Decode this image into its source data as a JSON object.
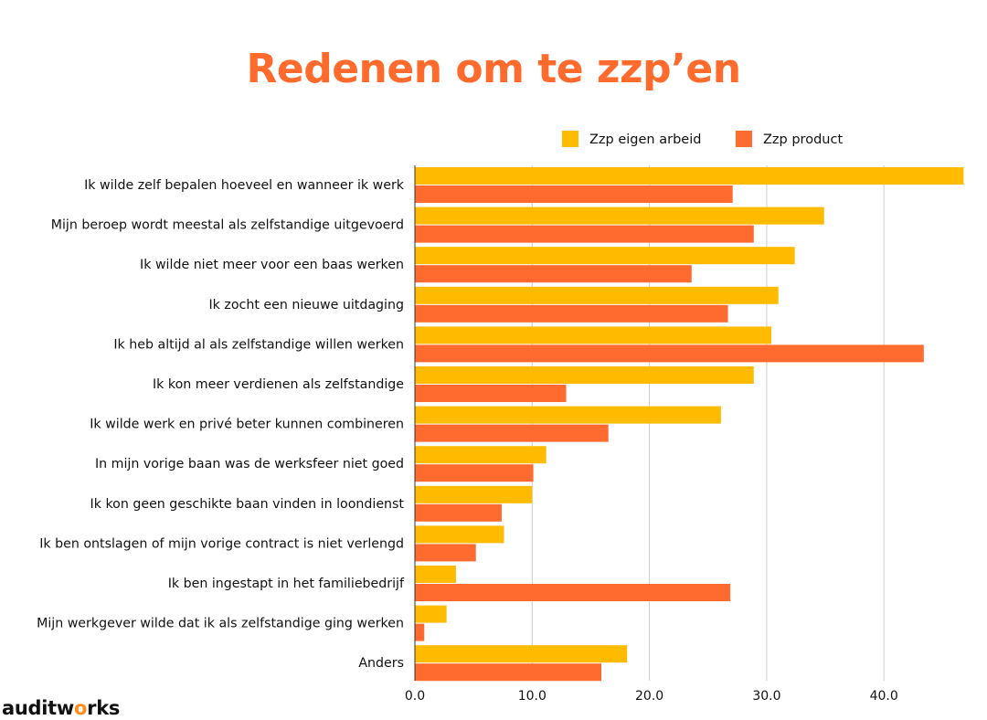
{
  "chart_data": {
    "type": "bar",
    "orientation": "horizontal",
    "title": "Redenen om te zzp’en",
    "xlabel": "",
    "ylabel": "",
    "xlim": [
      0,
      46.8
    ],
    "x_ticks": [
      "0.0",
      "10.0",
      "20.0",
      "30.0",
      "40.0"
    ],
    "x_tick_values": [
      0,
      10,
      20,
      30,
      40
    ],
    "grid": true,
    "legend_position": "top-right",
    "categories": [
      "Ik wilde zelf bepalen hoeveel en wanneer ik werk",
      "Mijn beroep wordt meestal als zelfstandige uitgevoerd",
      "Ik wilde niet meer voor een baas werken",
      "Ik zocht een nieuwe uitdaging",
      "Ik heb altijd al als zelfstandige willen werken",
      "Ik kon meer verdienen als zelfstandige",
      "Ik wilde werk en privé beter kunnen combineren",
      "In mijn vorige baan was de werksfeer niet goed",
      "Ik kon geen geschikte baan vinden in loondienst",
      "Ik ben ontslagen of mijn vorige contract is niet verlengd",
      "Ik ben ingestapt in het familiebedrijf",
      "Mijn werkgever wilde dat ik als zelfstandige ging werken",
      "Anders"
    ],
    "series": [
      {
        "name": "Zzp eigen arbeid",
        "color": "#ffbb00",
        "values": [
          46.8,
          34.9,
          32.4,
          31.0,
          30.4,
          28.9,
          26.1,
          11.2,
          10.0,
          7.6,
          3.5,
          2.7,
          18.1
        ]
      },
      {
        "name": "Zzp product",
        "color": "#ff6a2f",
        "values": [
          27.1,
          28.9,
          23.6,
          26.7,
          43.4,
          12.9,
          16.5,
          10.1,
          7.4,
          5.2,
          26.9,
          0.8,
          15.9
        ]
      }
    ]
  },
  "logo": {
    "text_before": "auditw",
    "text_o": "o",
    "text_after": "rks"
  }
}
